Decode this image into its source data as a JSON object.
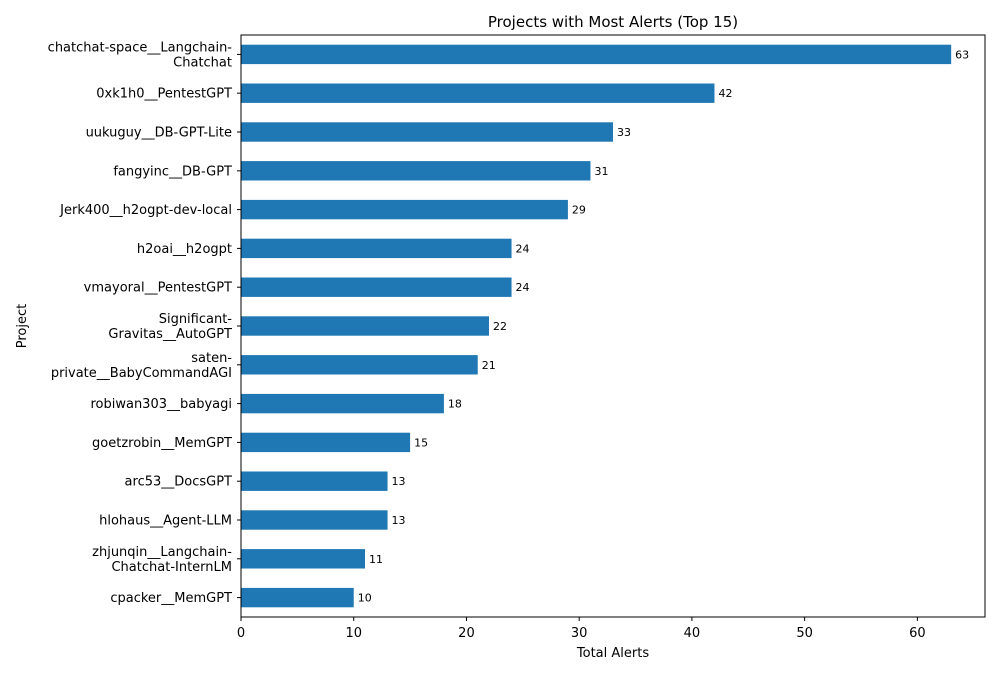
{
  "chart_data": {
    "type": "bar",
    "orientation": "horizontal",
    "title": "Projects with Most Alerts (Top 15)",
    "xlabel": "Total Alerts",
    "ylabel": "Project",
    "xlim": [
      0,
      66
    ],
    "xticks": [
      0,
      10,
      20,
      30,
      40,
      50,
      60
    ],
    "grid": false,
    "legend": "none",
    "bar_color": "#1f77b4",
    "categories": [
      [
        "chatchat-space__Langchain-",
        "Chatchat"
      ],
      [
        "0xk1h0__PentestGPT"
      ],
      [
        "uukuguy__DB-GPT-Lite"
      ],
      [
        "fangyinc__DB-GPT"
      ],
      [
        "Jerk400__h2ogpt-dev-local"
      ],
      [
        "h2oai__h2ogpt"
      ],
      [
        "vmayoral__PentestGPT"
      ],
      [
        "Significant-",
        "Gravitas__AutoGPT"
      ],
      [
        "saten-",
        "private__BabyCommandAGI"
      ],
      [
        "robiwan303__babyagi"
      ],
      [
        "goetzrobin__MemGPT"
      ],
      [
        "arc53__DocsGPT"
      ],
      [
        "hlohaus__Agent-LLM"
      ],
      [
        "zhjunqin__Langchain-",
        "Chatchat-InternLM"
      ],
      [
        "cpacker__MemGPT"
      ]
    ],
    "values": [
      63,
      42,
      33,
      31,
      29,
      24,
      24,
      22,
      21,
      18,
      15,
      13,
      13,
      11,
      10
    ]
  }
}
